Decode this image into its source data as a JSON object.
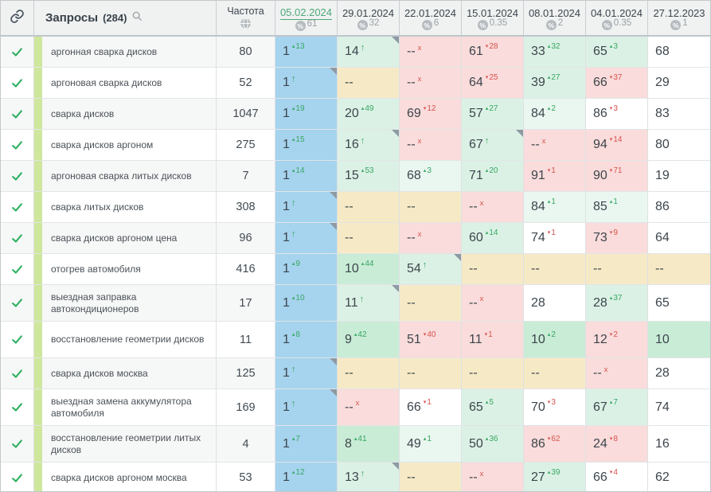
{
  "colors": {
    "selected_date_green": "#4fa879",
    "delta_up_green": "#36a862",
    "delta_down_red": "#d9534f",
    "check_green": "#2fb061",
    "query_stripe_green": "#cfe79c",
    "selected_column_blue": "#a6d3ee",
    "cell_bg": {
      "blue": "#a6d3ee",
      "g1": "#eaf6f0",
      "g2": "#dcf1e5",
      "g3": "#c9ecd6",
      "pink": "#f9dcdb",
      "tan": "#f6eac6",
      "white": "#ffffff"
    }
  },
  "legend": {
    "up_marker": "▴",
    "down_marker": "▾",
    "new_marker": "↑",
    "lost_marker": "x"
  },
  "header": {
    "queries_label": "Запросы",
    "queries_count": "(284)",
    "frequency_label": "Частота",
    "percent_symbol": "%",
    "dates": [
      {
        "date": "05.02.2024",
        "share": "61",
        "selected": true
      },
      {
        "date": "29.01.2024",
        "share": "32",
        "selected": false
      },
      {
        "date": "22.01.2024",
        "share": "6",
        "selected": false
      },
      {
        "date": "15.01.2024",
        "share": "0.35",
        "selected": false
      },
      {
        "date": "08.01.2024",
        "share": "2",
        "selected": false
      },
      {
        "date": "04.01.2024",
        "share": "0.35",
        "selected": false
      },
      {
        "date": "27.12.2023",
        "share": "1",
        "selected": false
      }
    ]
  },
  "rows": [
    {
      "query": "аргонная сварка дисков",
      "frequency": "80",
      "cells": [
        {
          "v": "1",
          "sup": "13",
          "t": "up",
          "bg": "blue"
        },
        {
          "v": "14",
          "t": "new",
          "bg": "g2",
          "corner": true
        },
        {
          "v": "--",
          "t": "lost",
          "bg": "pink"
        },
        {
          "v": "61",
          "sup": "28",
          "t": "down",
          "bg": "pink"
        },
        {
          "v": "33",
          "sup": "32",
          "t": "up",
          "bg": "g2"
        },
        {
          "v": "65",
          "sup": "3",
          "t": "up",
          "bg": "g2"
        },
        {
          "v": "68",
          "bg": "white"
        }
      ]
    },
    {
      "query": "аргоновая сварка дисков",
      "frequency": "52",
      "cells": [
        {
          "v": "1",
          "t": "new",
          "bg": "blue",
          "corner": true
        },
        {
          "v": "--",
          "bg": "tan"
        },
        {
          "v": "--",
          "t": "lost",
          "bg": "pink"
        },
        {
          "v": "64",
          "sup": "25",
          "t": "down",
          "bg": "pink"
        },
        {
          "v": "39",
          "sup": "27",
          "t": "up",
          "bg": "g2"
        },
        {
          "v": "66",
          "sup": "37",
          "t": "down",
          "bg": "pink"
        },
        {
          "v": "29",
          "bg": "white"
        }
      ]
    },
    {
      "query": "сварка дисков",
      "frequency": "1047",
      "cells": [
        {
          "v": "1",
          "sup": "19",
          "t": "up",
          "bg": "blue"
        },
        {
          "v": "20",
          "sup": "49",
          "t": "up",
          "bg": "g2"
        },
        {
          "v": "69",
          "sup": "12",
          "t": "down",
          "bg": "pink"
        },
        {
          "v": "57",
          "sup": "27",
          "t": "up",
          "bg": "g2"
        },
        {
          "v": "84",
          "sup": "2",
          "t": "up",
          "bg": "g1"
        },
        {
          "v": "86",
          "sup": "3",
          "t": "down",
          "bg": "white"
        },
        {
          "v": "83",
          "bg": "white"
        }
      ]
    },
    {
      "query": "сварка дисков аргоном",
      "frequency": "275",
      "cells": [
        {
          "v": "1",
          "sup": "15",
          "t": "up",
          "bg": "blue"
        },
        {
          "v": "16",
          "t": "new",
          "bg": "g2",
          "corner": true
        },
        {
          "v": "--",
          "t": "lost",
          "bg": "pink"
        },
        {
          "v": "67",
          "t": "new",
          "bg": "g2",
          "corner": true
        },
        {
          "v": "--",
          "t": "lost",
          "bg": "pink"
        },
        {
          "v": "94",
          "sup": "14",
          "t": "down",
          "bg": "pink"
        },
        {
          "v": "80",
          "bg": "white"
        }
      ]
    },
    {
      "query": "аргоновая сварка литых дисков",
      "frequency": "7",
      "cells": [
        {
          "v": "1",
          "sup": "14",
          "t": "up",
          "bg": "blue"
        },
        {
          "v": "15",
          "sup": "53",
          "t": "up",
          "bg": "g2"
        },
        {
          "v": "68",
          "sup": "3",
          "t": "up",
          "bg": "g1"
        },
        {
          "v": "71",
          "sup": "20",
          "t": "up",
          "bg": "g2"
        },
        {
          "v": "91",
          "sup": "1",
          "t": "down",
          "bg": "pink"
        },
        {
          "v": "90",
          "sup": "71",
          "t": "down",
          "bg": "pink"
        },
        {
          "v": "19",
          "bg": "white"
        }
      ]
    },
    {
      "query": "сварка литых дисков",
      "frequency": "308",
      "cells": [
        {
          "v": "1",
          "t": "new",
          "bg": "blue",
          "corner": true
        },
        {
          "v": "--",
          "bg": "tan"
        },
        {
          "v": "--",
          "bg": "tan"
        },
        {
          "v": "--",
          "t": "lost",
          "bg": "pink"
        },
        {
          "v": "84",
          "sup": "1",
          "t": "up",
          "bg": "g1"
        },
        {
          "v": "85",
          "sup": "1",
          "t": "up",
          "bg": "g1"
        },
        {
          "v": "86",
          "bg": "white"
        }
      ]
    },
    {
      "query": "сварка дисков аргоном цена",
      "frequency": "96",
      "cells": [
        {
          "v": "1",
          "t": "new",
          "bg": "blue",
          "corner": true
        },
        {
          "v": "--",
          "bg": "tan"
        },
        {
          "v": "--",
          "t": "lost",
          "bg": "pink"
        },
        {
          "v": "60",
          "sup": "14",
          "t": "up",
          "bg": "g2"
        },
        {
          "v": "74",
          "sup": "1",
          "t": "down",
          "bg": "white"
        },
        {
          "v": "73",
          "sup": "9",
          "t": "down",
          "bg": "pink"
        },
        {
          "v": "64",
          "bg": "white"
        }
      ]
    },
    {
      "query": "отогрев автомобиля",
      "frequency": "416",
      "cells": [
        {
          "v": "1",
          "sup": "9",
          "t": "up",
          "bg": "blue"
        },
        {
          "v": "10",
          "sup": "44",
          "t": "up",
          "bg": "g3"
        },
        {
          "v": "54",
          "t": "new",
          "bg": "g2",
          "corner": true
        },
        {
          "v": "--",
          "bg": "tan"
        },
        {
          "v": "--",
          "bg": "tan"
        },
        {
          "v": "--",
          "bg": "tan"
        },
        {
          "v": "--",
          "bg": "tan"
        }
      ]
    },
    {
      "query": "выездная заправка автокондиционеров",
      "frequency": "17",
      "cells": [
        {
          "v": "1",
          "sup": "10",
          "t": "up",
          "bg": "blue"
        },
        {
          "v": "11",
          "t": "new",
          "bg": "g2",
          "corner": true
        },
        {
          "v": "--",
          "bg": "tan"
        },
        {
          "v": "--",
          "t": "lost",
          "bg": "pink"
        },
        {
          "v": "28",
          "bg": "white"
        },
        {
          "v": "28",
          "sup": "37",
          "t": "up",
          "bg": "g2"
        },
        {
          "v": "65",
          "bg": "white"
        }
      ]
    },
    {
      "query": "восстановление геометрии дисков",
      "frequency": "11",
      "cells": [
        {
          "v": "1",
          "sup": "8",
          "t": "up",
          "bg": "blue"
        },
        {
          "v": "9",
          "sup": "42",
          "t": "up",
          "bg": "g3"
        },
        {
          "v": "51",
          "sup": "40",
          "t": "down",
          "bg": "pink"
        },
        {
          "v": "11",
          "sup": "1",
          "t": "down",
          "bg": "pink"
        },
        {
          "v": "10",
          "sup": "2",
          "t": "up",
          "bg": "g3"
        },
        {
          "v": "12",
          "sup": "2",
          "t": "down",
          "bg": "pink"
        },
        {
          "v": "10",
          "bg": "g3"
        }
      ]
    },
    {
      "query": "сварка дисков москва",
      "frequency": "125",
      "cells": [
        {
          "v": "1",
          "t": "new",
          "bg": "blue",
          "corner": true
        },
        {
          "v": "--",
          "bg": "tan"
        },
        {
          "v": "--",
          "bg": "tan"
        },
        {
          "v": "--",
          "bg": "tan"
        },
        {
          "v": "--",
          "bg": "tan"
        },
        {
          "v": "--",
          "t": "lost",
          "bg": "pink"
        },
        {
          "v": "28",
          "bg": "white"
        }
      ]
    },
    {
      "query": "выездная замена аккумулятора автомобиля",
      "frequency": "169",
      "cells": [
        {
          "v": "1",
          "t": "new",
          "bg": "blue",
          "corner": true
        },
        {
          "v": "--",
          "t": "lost",
          "bg": "pink"
        },
        {
          "v": "66",
          "sup": "1",
          "t": "down",
          "bg": "white"
        },
        {
          "v": "65",
          "sup": "5",
          "t": "up",
          "bg": "g2"
        },
        {
          "v": "70",
          "sup": "3",
          "t": "down",
          "bg": "white"
        },
        {
          "v": "67",
          "sup": "7",
          "t": "up",
          "bg": "g2"
        },
        {
          "v": "74",
          "bg": "white"
        }
      ]
    },
    {
      "query": "восстановление геометрии литых дисков",
      "frequency": "4",
      "cells": [
        {
          "v": "1",
          "sup": "7",
          "t": "up",
          "bg": "blue"
        },
        {
          "v": "8",
          "sup": "41",
          "t": "up",
          "bg": "g3"
        },
        {
          "v": "49",
          "sup": "1",
          "t": "up",
          "bg": "g1"
        },
        {
          "v": "50",
          "sup": "36",
          "t": "up",
          "bg": "g2"
        },
        {
          "v": "86",
          "sup": "62",
          "t": "down",
          "bg": "pink"
        },
        {
          "v": "24",
          "sup": "8",
          "t": "down",
          "bg": "pink"
        },
        {
          "v": "16",
          "bg": "white"
        }
      ]
    },
    {
      "query": "сварка дисков аргоном москва",
      "frequency": "53",
      "cells": [
        {
          "v": "1",
          "sup": "12",
          "t": "up",
          "bg": "blue"
        },
        {
          "v": "13",
          "t": "new",
          "bg": "g2",
          "corner": true
        },
        {
          "v": "--",
          "bg": "tan"
        },
        {
          "v": "--",
          "t": "lost",
          "bg": "pink"
        },
        {
          "v": "27",
          "sup": "39",
          "t": "up",
          "bg": "g2"
        },
        {
          "v": "66",
          "sup": "4",
          "t": "down",
          "bg": "white"
        },
        {
          "v": "62",
          "bg": "white"
        }
      ]
    }
  ]
}
